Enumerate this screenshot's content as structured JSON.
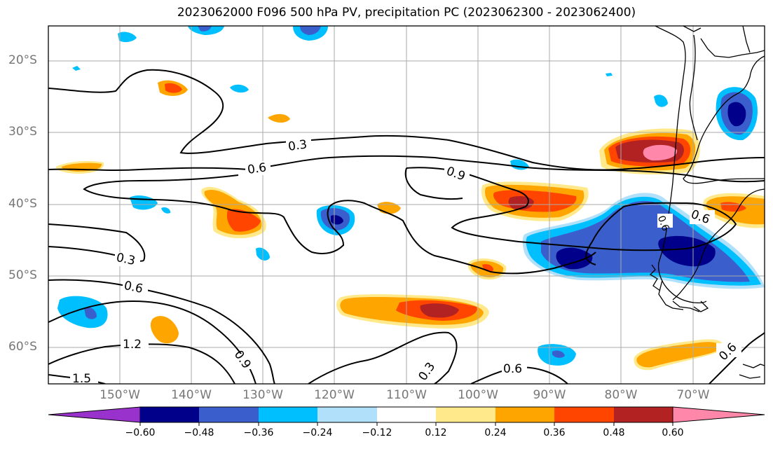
{
  "title": "2023062000 F096 500 hPa PV, precipitation PC (2023062300 - 2023062400)",
  "map": {
    "lat_labels": [
      "20°S",
      "30°S",
      "40°S",
      "50°S",
      "60°S"
    ],
    "lon_labels": [
      "150°W",
      "140°W",
      "130°W",
      "120°W",
      "110°W",
      "100°W",
      "90°W",
      "80°W",
      "70°W"
    ],
    "contour_labels": [
      "0.3",
      "0.6",
      "0.9",
      "0.3",
      "0.6",
      "0.6",
      "1.2",
      "0.9",
      "1.5",
      "0.3",
      "0.6",
      "0.6",
      "0.6"
    ],
    "coastline_color": "#000000"
  },
  "colorbar": {
    "ticks": [
      "−0.60",
      "−0.48",
      "−0.36",
      "−0.24",
      "−0.12",
      "0.12",
      "0.24",
      "0.36",
      "0.48",
      "0.60"
    ],
    "colors": [
      "#9932cc",
      "#00008b",
      "#3a5fcd",
      "#00bfff",
      "#b0e0fa",
      "#ffffff",
      "#ffe98a",
      "#ffa500",
      "#ff4500",
      "#b22222",
      "#ff88aa"
    ]
  }
}
